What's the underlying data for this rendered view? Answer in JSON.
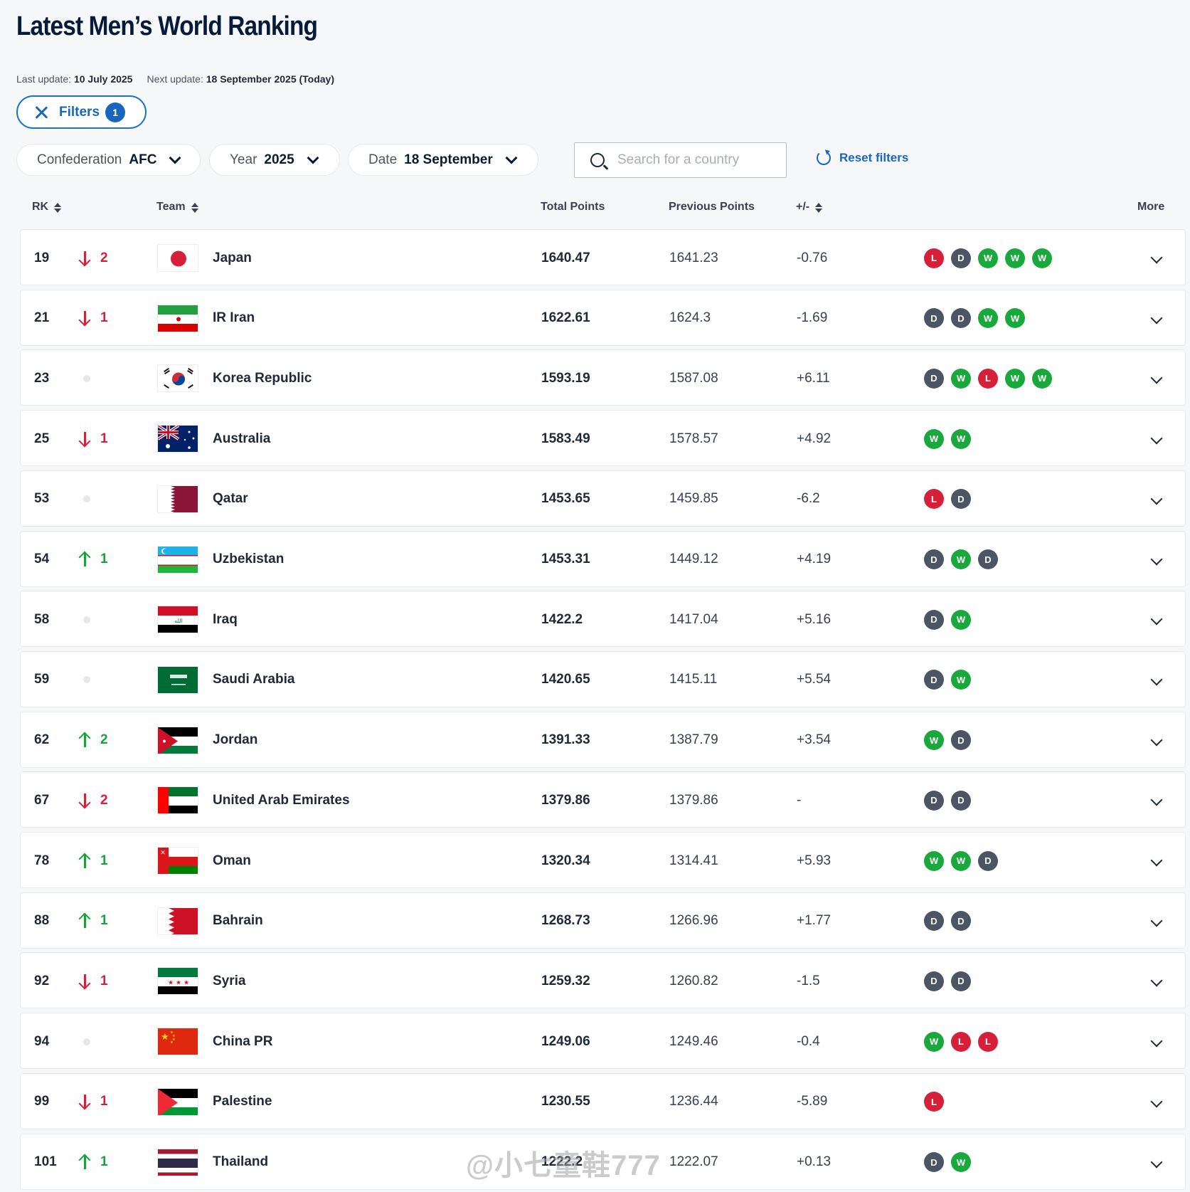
{
  "page": {
    "title": "Latest Men’s World Ranking",
    "last_update_label": "Last update:",
    "last_update_value": "10 July 2025",
    "next_update_label": "Next update:",
    "next_update_value": "18 September 2025 (Today)"
  },
  "filters": {
    "button_label": "Filters",
    "count": "1",
    "confederation_label": "Confederation",
    "confederation_value": "AFC",
    "year_label": "Year",
    "year_value": "2025",
    "date_label": "Date",
    "date_value": "18 September",
    "search_placeholder": "Search for a country",
    "reset_label": "Reset filters"
  },
  "table": {
    "headers": {
      "rk": "RK",
      "team": "Team",
      "total": "Total Points",
      "previous": "Previous Points",
      "diff": "+/-",
      "more": "More"
    },
    "rows": [
      {
        "rank": "19",
        "move": "down",
        "move_value": "2",
        "team": "Japan",
        "flag": "japan",
        "total": "1640.47",
        "previous": "1641.23",
        "diff": "-0.76",
        "form": [
          "L",
          "D",
          "W",
          "W",
          "W"
        ]
      },
      {
        "rank": "21",
        "move": "down",
        "move_value": "1",
        "team": "IR Iran",
        "flag": "iran",
        "total": "1622.61",
        "previous": "1624.3",
        "diff": "-1.69",
        "form": [
          "D",
          "D",
          "W",
          "W"
        ]
      },
      {
        "rank": "23",
        "move": "none",
        "move_value": "",
        "team": "Korea Republic",
        "flag": "korea",
        "total": "1593.19",
        "previous": "1587.08",
        "diff": "+6.11",
        "form": [
          "D",
          "W",
          "L",
          "W",
          "W"
        ]
      },
      {
        "rank": "25",
        "move": "down",
        "move_value": "1",
        "team": "Australia",
        "flag": "australia",
        "total": "1583.49",
        "previous": "1578.57",
        "diff": "+4.92",
        "form": [
          "W",
          "W"
        ]
      },
      {
        "rank": "53",
        "move": "none",
        "move_value": "",
        "team": "Qatar",
        "flag": "qatar",
        "total": "1453.65",
        "previous": "1459.85",
        "diff": "-6.2",
        "form": [
          "L",
          "D"
        ]
      },
      {
        "rank": "54",
        "move": "up",
        "move_value": "1",
        "team": "Uzbekistan",
        "flag": "uzbekistan",
        "total": "1453.31",
        "previous": "1449.12",
        "diff": "+4.19",
        "form": [
          "D",
          "W",
          "D"
        ]
      },
      {
        "rank": "58",
        "move": "none",
        "move_value": "",
        "team": "Iraq",
        "flag": "iraq",
        "total": "1422.2",
        "previous": "1417.04",
        "diff": "+5.16",
        "form": [
          "D",
          "W"
        ]
      },
      {
        "rank": "59",
        "move": "none",
        "move_value": "",
        "team": "Saudi Arabia",
        "flag": "saudi",
        "total": "1420.65",
        "previous": "1415.11",
        "diff": "+5.54",
        "form": [
          "D",
          "W"
        ]
      },
      {
        "rank": "62",
        "move": "up",
        "move_value": "2",
        "team": "Jordan",
        "flag": "jordan",
        "total": "1391.33",
        "previous": "1387.79",
        "diff": "+3.54",
        "form": [
          "W",
          "D"
        ]
      },
      {
        "rank": "67",
        "move": "down",
        "move_value": "2",
        "team": "United Arab Emirates",
        "flag": "uae",
        "total": "1379.86",
        "previous": "1379.86",
        "diff": "-",
        "form": [
          "D",
          "D"
        ]
      },
      {
        "rank": "78",
        "move": "up",
        "move_value": "1",
        "team": "Oman",
        "flag": "oman",
        "total": "1320.34",
        "previous": "1314.41",
        "diff": "+5.93",
        "form": [
          "W",
          "W",
          "D"
        ]
      },
      {
        "rank": "88",
        "move": "up",
        "move_value": "1",
        "team": "Bahrain",
        "flag": "bahrain",
        "total": "1268.73",
        "previous": "1266.96",
        "diff": "+1.77",
        "form": [
          "D",
          "D"
        ]
      },
      {
        "rank": "92",
        "move": "down",
        "move_value": "1",
        "team": "Syria",
        "flag": "syria",
        "total": "1259.32",
        "previous": "1260.82",
        "diff": "-1.5",
        "form": [
          "D",
          "D"
        ]
      },
      {
        "rank": "94",
        "move": "none",
        "move_value": "",
        "team": "China PR",
        "flag": "china",
        "total": "1249.06",
        "previous": "1249.46",
        "diff": "-0.4",
        "form": [
          "W",
          "L",
          "L"
        ]
      },
      {
        "rank": "99",
        "move": "down",
        "move_value": "1",
        "team": "Palestine",
        "flag": "palestine",
        "total": "1230.55",
        "previous": "1236.44",
        "diff": "-5.89",
        "form": [
          "L"
        ]
      },
      {
        "rank": "101",
        "move": "up",
        "move_value": "1",
        "team": "Thailand",
        "flag": "thailand",
        "total": "1222.2",
        "previous": "1222.07",
        "diff": "+0.13",
        "form": [
          "D",
          "W"
        ]
      }
    ]
  },
  "watermark": "@小七童鞋777"
}
